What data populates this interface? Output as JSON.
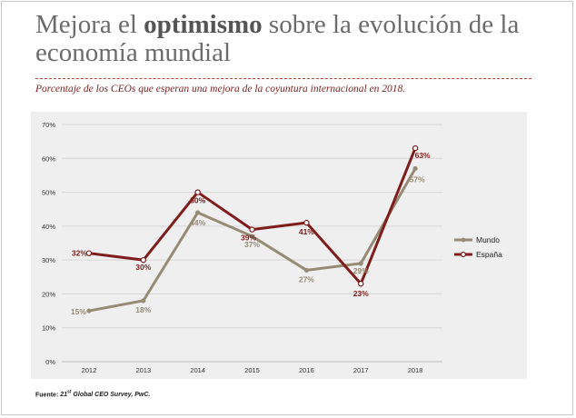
{
  "title": {
    "part1": "Mejora el ",
    "bold": "optimismo",
    "part2": " sobre la evolución de la economía mundial"
  },
  "subtitle": "Porcentaje de los CEOs que esperan una mejora de la coyuntura internacional en 2018.",
  "source": {
    "prefix": "Fuente: ",
    "num": "21",
    "sup": "st",
    "rest": " Global CEO Survey, PwC."
  },
  "chart_data": {
    "type": "line",
    "categories": [
      "2012",
      "2013",
      "2014",
      "2015",
      "2016",
      "2017",
      "2018"
    ],
    "ylim": [
      0,
      70
    ],
    "yticks": [
      0,
      10,
      20,
      30,
      40,
      50,
      60,
      70
    ],
    "ytick_labels": [
      "0%",
      "10%",
      "20%",
      "30%",
      "40%",
      "50%",
      "60%",
      "70%"
    ],
    "grid": true,
    "legend_position": "right",
    "series": [
      {
        "name": "Mundo",
        "values": [
          15,
          18,
          44,
          37,
          27,
          29,
          57
        ],
        "labels": [
          "15%",
          "18%",
          "44%",
          "37%",
          "27%",
          "29%",
          "57%"
        ],
        "color": "#968b74"
      },
      {
        "name": "España",
        "values": [
          32,
          30,
          50,
          39,
          41,
          23,
          63
        ],
        "labels": [
          "32%",
          "30%",
          "50%",
          "39%",
          "41%",
          "23%",
          "63%"
        ],
        "color": "#7f1d1d"
      }
    ]
  }
}
